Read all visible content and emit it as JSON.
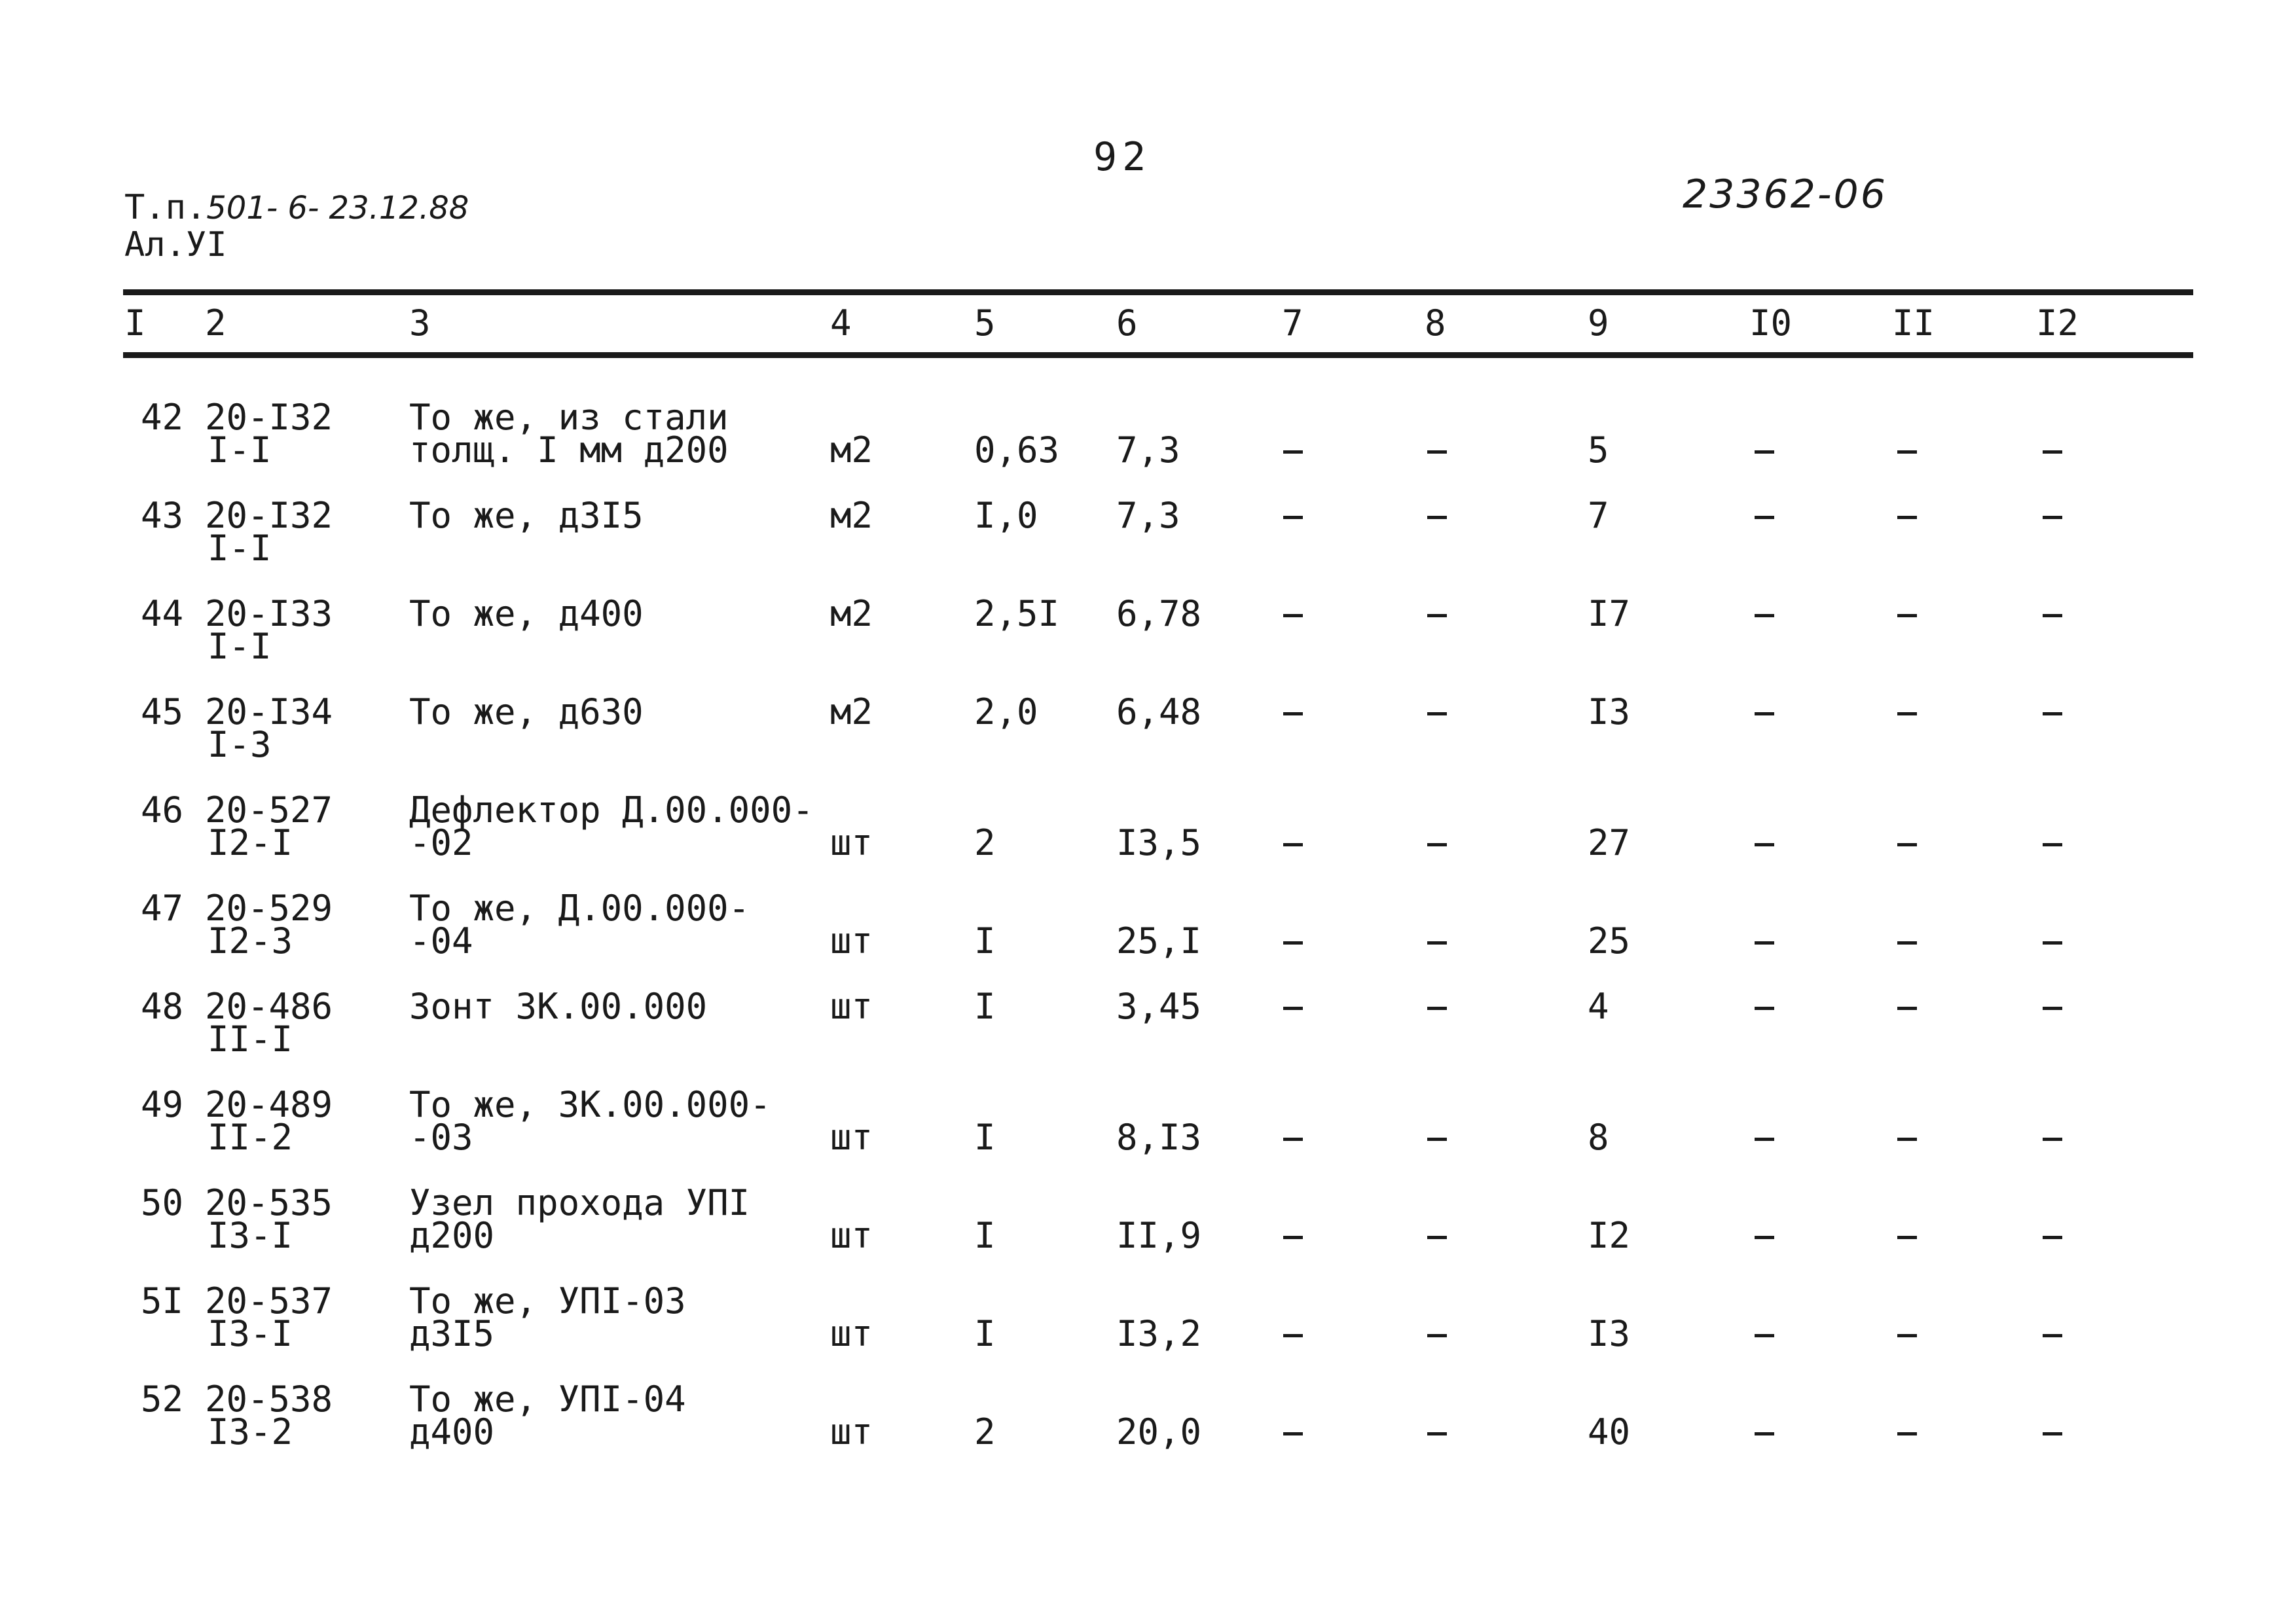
{
  "page_number": "92",
  "doc_ref_prefix": "Т.п.",
  "doc_ref_hand": "501- 6- 23.12.88",
  "sheet_label": "Ал.УI",
  "archive_number": "23362-06",
  "table": {
    "headers": [
      "I",
      "2",
      "3",
      "4",
      "5",
      "6",
      "7",
      "8",
      "9",
      "I0",
      "II",
      "I2"
    ],
    "rows": [
      {
        "n": "42",
        "code1": "20-I32",
        "code2": "I-I",
        "name1": "То же, из стали",
        "name2": "толщ. I мм д200",
        "unit": "м2",
        "c5": "0,63",
        "c6": "7,3",
        "c7": "–",
        "c8": "–",
        "c9": "5",
        "c10": "–",
        "c11": "–",
        "c12": "–"
      },
      {
        "n": "43",
        "code1": "20-I32",
        "code2": "I-I",
        "name1": "То же, д3I5",
        "name2": "",
        "unit": "м2",
        "c5": "I,0",
        "c6": "7,3",
        "c7": "–",
        "c8": "–",
        "c9": "7",
        "c10": "–",
        "c11": "–",
        "c12": "–"
      },
      {
        "n": "44",
        "code1": "20-I33",
        "code2": "I-I",
        "name1": "То же, д400",
        "name2": "",
        "unit": "м2",
        "c5": "2,5I",
        "c6": "6,78",
        "c7": "–",
        "c8": "–",
        "c9": "I7",
        "c10": "–",
        "c11": "–",
        "c12": "–"
      },
      {
        "n": "45",
        "code1": "20-I34",
        "code2": "I-3",
        "name1": "То же, д630",
        "name2": "",
        "unit": "м2",
        "c5": "2,0",
        "c6": "6,48",
        "c7": "–",
        "c8": "–",
        "c9": "I3",
        "c10": "–",
        "c11": "–",
        "c12": "–"
      },
      {
        "n": "46",
        "code1": "20-527",
        "code2": "I2-I",
        "name1": "Дефлектор Д.00.000-",
        "name2": "-02",
        "unit": "шт",
        "c5": "2",
        "c6": "I3,5",
        "c7": "–",
        "c8": "–",
        "c9": "27",
        "c10": "–",
        "c11": "–",
        "c12": "–"
      },
      {
        "n": "47",
        "code1": "20-529",
        "code2": "I2-3",
        "name1": "То же, Д.00.000-",
        "name2": "-04",
        "unit": "шт",
        "c5": "I",
        "c6": "25,I",
        "c7": "–",
        "c8": "–",
        "c9": "25",
        "c10": "–",
        "c11": "–",
        "c12": "–"
      },
      {
        "n": "48",
        "code1": "20-486",
        "code2": "II-I",
        "name1": "Зонт ЗК.00.000",
        "name2": "",
        "unit": "шт",
        "c5": "I",
        "c6": "3,45",
        "c7": "–",
        "c8": "–",
        "c9": "4",
        "c10": "–",
        "c11": "–",
        "c12": "–"
      },
      {
        "n": "49",
        "code1": "20-489",
        "code2": "II-2",
        "name1": "То же, ЗК.00.000-",
        "name2": "-03",
        "unit": "шт",
        "c5": "I",
        "c6": "8,I3",
        "c7": "–",
        "c8": "–",
        "c9": "8",
        "c10": "–",
        "c11": "–",
        "c12": "–"
      },
      {
        "n": "50",
        "code1": "20-535",
        "code2": "I3-I",
        "name1": "Узел прохода УПI",
        "name2": "д200",
        "unit": "шт",
        "c5": "I",
        "c6": "II,9",
        "c7": "–",
        "c8": "–",
        "c9": "I2",
        "c10": "–",
        "c11": "–",
        "c12": "–"
      },
      {
        "n": "5I",
        "code1": "20-537",
        "code2": "I3-I",
        "name1": "То же, УПI-03",
        "name2": "д3I5",
        "unit": "шт",
        "c5": "I",
        "c6": "I3,2",
        "c7": "–",
        "c8": "–",
        "c9": "I3",
        "c10": "–",
        "c11": "–",
        "c12": "–"
      },
      {
        "n": "52",
        "code1": "20-538",
        "code2": "I3-2",
        "name1": "То же, УПI-04",
        "name2": "д400",
        "unit": "шт",
        "c5": "2",
        "c6": "20,0",
        "c7": "–",
        "c8": "–",
        "c9": "40",
        "c10": "–",
        "c11": "–",
        "c12": "–"
      }
    ]
  }
}
